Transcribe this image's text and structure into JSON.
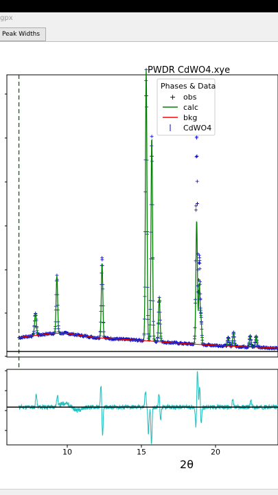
{
  "window": {
    "title_fragment": "gpx"
  },
  "tabs": [
    {
      "label": "Peak Widths"
    }
  ],
  "chart_data": {
    "type": "line",
    "title": "PWDR CdWO4.xye",
    "xlabel": "2θ",
    "x_ticks": [
      "10",
      "15",
      "20"
    ],
    "xlim": [
      6.1,
      24.1
    ],
    "legend": {
      "title": "Phases & Data",
      "placement": "top-right",
      "entries": [
        {
          "label": "obs",
          "marker": "+",
          "color": "#0000cc"
        },
        {
          "label": "calc",
          "marker": "line",
          "color": "#008000"
        },
        {
          "label": "bkg",
          "marker": "line",
          "color": "#ff0000"
        },
        {
          "label": "CdWO4",
          "marker": "|",
          "color": "#0000cc"
        }
      ]
    },
    "excluded_region_marker_x": 6.9,
    "background_curve": {
      "x": [
        6.9,
        9,
        10,
        12,
        15,
        18,
        21,
        24.1
      ],
      "y": [
        0.05,
        0.065,
        0.066,
        0.05,
        0.04,
        0.028,
        0.019,
        0.012
      ]
    },
    "peaks": [
      {
        "x": 8.0,
        "height": 0.08,
        "width": 0.06
      },
      {
        "x": 9.42,
        "height": 0.21,
        "width": 0.05
      },
      {
        "x": 12.42,
        "height": 0.27,
        "width": 0.05
      },
      {
        "x": 15.35,
        "height": 0.98,
        "width": 0.05
      },
      {
        "x": 15.72,
        "height": 0.74,
        "width": 0.05
      },
      {
        "x": 16.22,
        "height": 0.16,
        "width": 0.05
      },
      {
        "x": 18.7,
        "height": 0.45,
        "width": 0.05
      },
      {
        "x": 18.88,
        "height": 0.22,
        "width": 0.05
      },
      {
        "x": 19.0,
        "height": 0.08,
        "width": 0.04
      },
      {
        "x": 20.8,
        "height": 0.03,
        "width": 0.05
      },
      {
        "x": 21.15,
        "height": 0.05,
        "width": 0.05
      },
      {
        "x": 22.25,
        "height": 0.04,
        "width": 0.05
      },
      {
        "x": 22.65,
        "height": 0.04,
        "width": 0.05
      }
    ],
    "obs_excess": [
      {
        "x": 18.7,
        "extra": 0.3
      },
      {
        "x": 18.88,
        "extra": 0.1
      },
      {
        "x": 12.42,
        "extra": 0.02
      }
    ],
    "upper_ylim": [
      -0.02,
      1.0
    ],
    "difference": {
      "color": "#2abfbf",
      "ylim": [
        -1.15,
        1.15
      ],
      "spikes": [
        {
          "x": 8.05,
          "v": 0.4
        },
        {
          "x": 9.45,
          "v": 0.35
        },
        {
          "x": 12.35,
          "v": 0.7
        },
        {
          "x": 12.45,
          "v": -0.9
        },
        {
          "x": 15.3,
          "v": 0.5
        },
        {
          "x": 15.5,
          "v": -0.8
        },
        {
          "x": 15.7,
          "v": -1.1
        },
        {
          "x": 16.2,
          "v": 0.45
        },
        {
          "x": 16.3,
          "v": -0.4
        },
        {
          "x": 18.65,
          "v": -0.6
        },
        {
          "x": 18.75,
          "v": 1.1
        },
        {
          "x": 18.9,
          "v": 0.6
        },
        {
          "x": 19.0,
          "v": -0.5
        },
        {
          "x": 21.1,
          "v": 0.25
        },
        {
          "x": 22.3,
          "v": 0.2
        }
      ]
    }
  }
}
